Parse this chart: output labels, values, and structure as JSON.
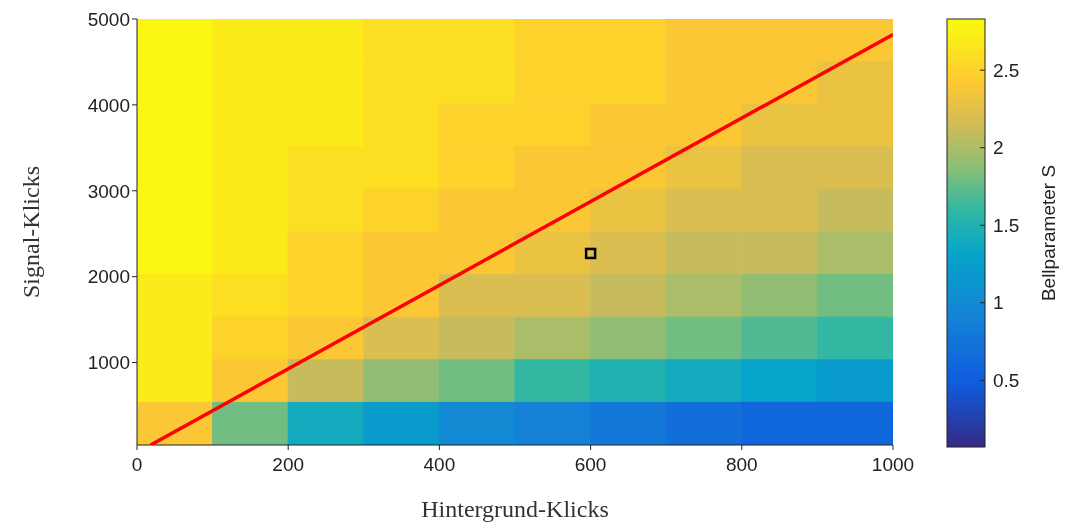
{
  "chart_data": {
    "type": "heatmap",
    "xlabel": "Hintergrund-Klicks",
    "ylabel": "Signal-Klicks",
    "clabel": "Bellparameter S",
    "xlim": [
      0,
      1000
    ],
    "ylim": [
      40,
      5000
    ],
    "xticks": [
      0,
      200,
      400,
      600,
      800,
      1000
    ],
    "yticks": [
      1000,
      2000,
      3000,
      4000,
      5000
    ],
    "clim": [
      0.07,
      2.83
    ],
    "cticks": [
      0.5,
      1,
      1.5,
      2,
      2.5
    ],
    "grid": false,
    "cells": [
      [
        2.8,
        2.7,
        2.7,
        2.6,
        2.6,
        2.5,
        2.5,
        2.4,
        2.4,
        2.4
      ],
      [
        2.8,
        2.7,
        2.7,
        2.6,
        2.6,
        2.5,
        2.5,
        2.4,
        2.4,
        2.3
      ],
      [
        2.8,
        2.7,
        2.7,
        2.6,
        2.5,
        2.5,
        2.4,
        2.4,
        2.3,
        2.3
      ],
      [
        2.8,
        2.7,
        2.6,
        2.6,
        2.5,
        2.4,
        2.4,
        2.3,
        2.2,
        2.2
      ],
      [
        2.8,
        2.7,
        2.6,
        2.5,
        2.4,
        2.4,
        2.3,
        2.2,
        2.2,
        2.1
      ],
      [
        2.8,
        2.7,
        2.5,
        2.4,
        2.4,
        2.3,
        2.2,
        2.1,
        2.1,
        2.0
      ],
      [
        2.7,
        2.6,
        2.5,
        2.4,
        2.2,
        2.2,
        2.1,
        2.0,
        1.9,
        1.8
      ],
      [
        2.7,
        2.5,
        2.4,
        2.2,
        2.1,
        2.0,
        1.9,
        1.8,
        1.7,
        1.6
      ],
      [
        2.7,
        2.4,
        2.1,
        1.9,
        1.8,
        1.6,
        1.5,
        1.4,
        1.3,
        1.2
      ],
      [
        2.4,
        1.8,
        1.4,
        1.2,
        1.0,
        0.9,
        0.8,
        0.7,
        0.6,
        0.6
      ]
    ],
    "series": [
      {
        "type": "line",
        "color": "#ff0000",
        "x": [
          18,
          1000
        ],
        "values": [
          40,
          4820
        ]
      },
      {
        "type": "scatter",
        "marker": "square",
        "color": "#000000",
        "x": [
          600
        ],
        "values": [
          2270
        ]
      }
    ]
  }
}
